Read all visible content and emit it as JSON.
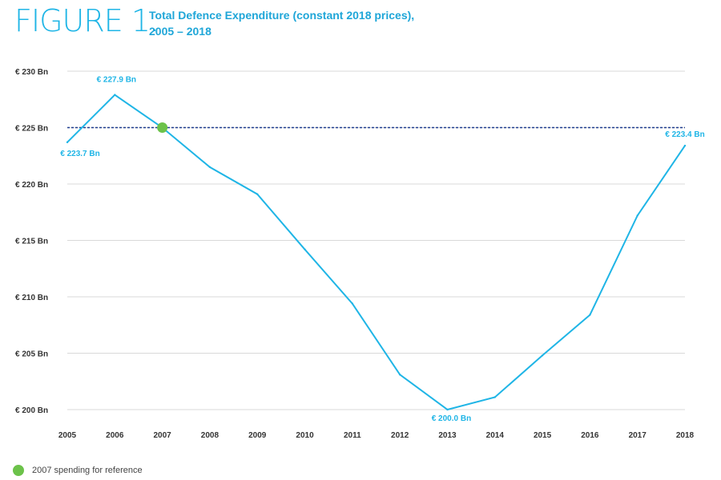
{
  "figure": {
    "label": "FIGURE 1.",
    "title_line1": "Total Defence Expenditure (constant 2018 prices),",
    "title_line2": "2005 – 2018"
  },
  "chart_data": {
    "type": "line",
    "title": "Total Defence Expenditure (constant 2018 prices), 2005 – 2018",
    "xlabel": "",
    "ylabel": "",
    "x": [
      "2005",
      "2006",
      "2007",
      "2008",
      "2009",
      "2010",
      "2011",
      "2012",
      "2013",
      "2014",
      "2015",
      "2016",
      "2017",
      "2018"
    ],
    "series": [
      {
        "name": "Total Defence Expenditure",
        "values": [
          223.7,
          227.9,
          225.0,
          221.5,
          219.1,
          214.2,
          209.4,
          203.1,
          200.0,
          201.1,
          204.8,
          208.4,
          217.2,
          223.4
        ]
      }
    ],
    "ylim": [
      200,
      230
    ],
    "yticks": [
      200,
      205,
      210,
      215,
      220,
      225,
      230
    ],
    "ytick_labels": [
      "€ 200 Bn",
      "€ 205 Bn",
      "€ 210 Bn",
      "€ 215 Bn",
      "€ 220 Bn",
      "€ 225 Bn",
      "€ 230 Bn"
    ],
    "grid": true,
    "reference": {
      "year": "2007",
      "value": 225.0
    },
    "annotations": [
      {
        "index": 0,
        "text": "€ 223.7 Bn"
      },
      {
        "index": 1,
        "text": "€ 227.9 Bn"
      },
      {
        "index": 8,
        "text": "€ 200.0 Bn"
      },
      {
        "index": 13,
        "text": "€ 223.4 Bn"
      }
    ],
    "colors": {
      "line": "#1fb5e6",
      "reference_line": "#1f3c8f",
      "reference_point": "#6cc24a",
      "grid": "#d9d9d9"
    }
  },
  "legend": {
    "label": "2007 spending for reference",
    "color": "#6cc24a"
  }
}
